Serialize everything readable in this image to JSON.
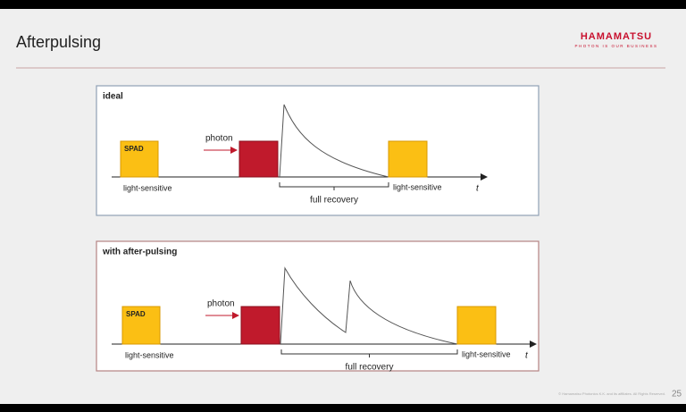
{
  "header": {
    "title": "Afterpulsing",
    "logo": "HAMAMATSU",
    "tagline": "PHOTON IS OUR BUSINESS"
  },
  "panels": [
    {
      "title": "ideal",
      "spad_label": "SPAD",
      "photon_label": "photon",
      "left_label": "light-sensitive",
      "right_label": "light-sensitive",
      "axis_label": "t",
      "recovery_label": "full recovery"
    },
    {
      "title": "with after-pulsing",
      "spad_label": "SPAD",
      "photon_label": "photon",
      "left_label": "light-sensitive",
      "right_label": "light-sensitive",
      "axis_label": "t",
      "recovery_label": "full recovery"
    }
  ],
  "footer": {
    "copyright": "© Hamamatsu Photonics K.K. and its affiliates. All Rights Reserved.",
    "page": "25"
  }
}
